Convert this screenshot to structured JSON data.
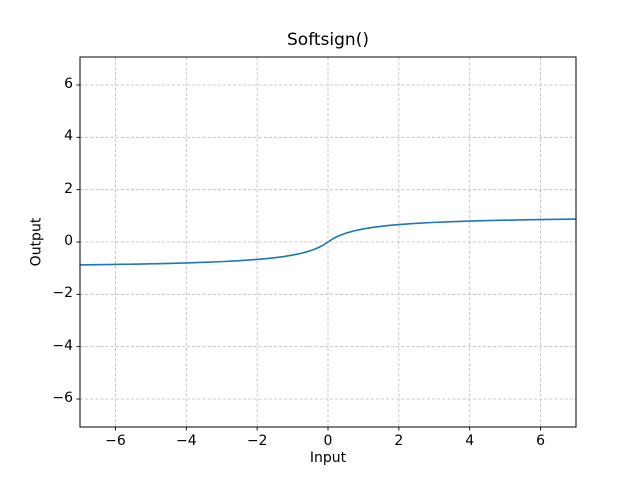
{
  "chart_data": {
    "type": "line",
    "title": "Softsign()",
    "xlabel": "Input",
    "ylabel": "Output",
    "xlim": [
      -7,
      7
    ],
    "ylim": [
      -7.07,
      7.07
    ],
    "grid": true,
    "grid_style": "dashed",
    "legend": "none",
    "colors": {
      "line": "#1f77b4",
      "grid": "#bbbbbb",
      "spine": "#000000",
      "background": "#ffffff"
    },
    "xticks": {
      "values": [
        -6,
        -4,
        -2,
        0,
        2,
        4,
        6
      ],
      "labels": [
        "−6",
        "−4",
        "−2",
        "0",
        "2",
        "4",
        "6"
      ]
    },
    "yticks": {
      "values": [
        -6,
        -4,
        -2,
        0,
        2,
        4,
        6
      ],
      "labels": [
        "−6",
        "−4",
        "−2",
        "0",
        "2",
        "4",
        "6"
      ]
    },
    "series": [
      {
        "name": "Softsign",
        "x": [
          -7,
          -6.5,
          -6,
          -5.5,
          -5,
          -4.5,
          -4,
          -3.5,
          -3,
          -2.5,
          -2,
          -1.75,
          -1.5,
          -1.25,
          -1,
          -0.875,
          -0.75,
          -0.625,
          -0.5,
          -0.375,
          -0.25,
          -0.125,
          0,
          0.125,
          0.25,
          0.375,
          0.5,
          0.625,
          0.75,
          0.875,
          1,
          1.25,
          1.5,
          1.75,
          2,
          2.5,
          3,
          3.5,
          4,
          4.5,
          5,
          5.5,
          6,
          6.5,
          7
        ],
        "y": [
          -0.875,
          -0.8667,
          -0.8571,
          -0.8462,
          -0.8333,
          -0.8182,
          -0.8,
          -0.7778,
          -0.75,
          -0.7143,
          -0.6667,
          -0.6364,
          -0.6,
          -0.5556,
          -0.5,
          -0.4667,
          -0.4286,
          -0.3846,
          -0.3333,
          -0.2727,
          -0.2,
          -0.1111,
          0,
          0.1111,
          0.2,
          0.2727,
          0.3333,
          0.3846,
          0.4286,
          0.4667,
          0.5,
          0.5556,
          0.6,
          0.6364,
          0.6667,
          0.7143,
          0.75,
          0.7778,
          0.8,
          0.8182,
          0.8333,
          0.8462,
          0.8571,
          0.8667,
          0.875
        ]
      }
    ]
  }
}
